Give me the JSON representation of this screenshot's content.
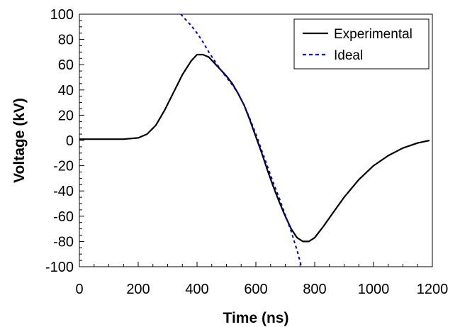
{
  "chart_data": {
    "type": "line",
    "title": "",
    "xlabel": "Time (ns)",
    "ylabel": "Voltage (kV)",
    "xlim": [
      0,
      1200
    ],
    "ylim": [
      -100,
      100
    ],
    "xticks": [
      0,
      200,
      400,
      600,
      800,
      1000,
      1200
    ],
    "yticks": [
      100,
      80,
      60,
      40,
      20,
      0,
      -20,
      -40,
      -60,
      -80,
      -100
    ],
    "grid": false,
    "legend": {
      "position": "top-right",
      "entries": [
        "Experimental",
        "Ideal"
      ]
    },
    "series": [
      {
        "name": "Experimental",
        "style": "solid",
        "color": "#000000",
        "x": [
          0,
          50,
          100,
          150,
          200,
          230,
          260,
          290,
          320,
          350,
          380,
          400,
          420,
          440,
          460,
          480,
          500,
          520,
          540,
          560,
          580,
          600,
          620,
          640,
          660,
          680,
          700,
          720,
          740,
          760,
          780,
          800,
          830,
          860,
          900,
          950,
          1000,
          1050,
          1100,
          1150,
          1190
        ],
        "y": [
          1,
          1,
          1,
          1,
          2,
          5,
          12,
          24,
          38,
          52,
          63,
          68,
          68,
          66,
          61,
          56,
          51,
          45,
          37,
          28,
          16,
          3,
          -10,
          -24,
          -37,
          -49,
          -60,
          -70,
          -77,
          -80,
          -80,
          -77,
          -68,
          -58,
          -45,
          -31,
          -20,
          -12,
          -6,
          -2,
          0
        ]
      },
      {
        "name": "Ideal",
        "style": "dashed",
        "color": "#0000cc",
        "x": [
          345,
          360,
          380,
          400,
          420,
          440,
          460,
          480,
          500,
          520,
          540,
          560,
          580,
          600,
          620,
          640,
          660,
          680,
          700,
          720,
          740,
          755
        ],
        "y": [
          100,
          96,
          91,
          85,
          78,
          70,
          63,
          56,
          50,
          44,
          37,
          28,
          17,
          5,
          -8,
          -21,
          -34,
          -46,
          -59,
          -72,
          -87,
          -100
        ]
      }
    ]
  }
}
